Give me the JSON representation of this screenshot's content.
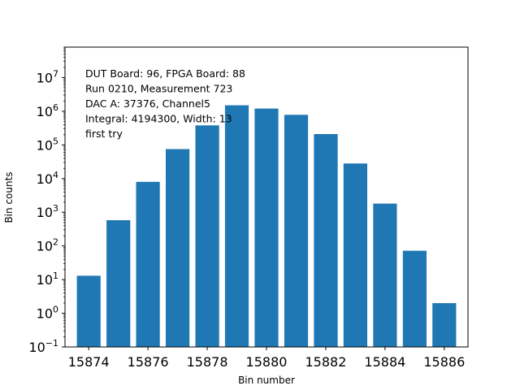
{
  "chart_data": {
    "type": "bar",
    "x": [
      15874,
      15875,
      15876,
      15877,
      15878,
      15879,
      15880,
      15881,
      15882,
      15883,
      15884,
      15885,
      15886
    ],
    "values": [
      13,
      580,
      8000,
      75000,
      380000,
      1500000,
      1200000,
      780000,
      210000,
      28000,
      1800,
      72,
      2
    ],
    "bar_color": "#1f77b4",
    "xlabel": "Bin number",
    "ylabel": "Bin counts",
    "yscale": "log",
    "xlim": [
      15873.2,
      15886.8
    ],
    "ylim": [
      0.1,
      80000000
    ],
    "x_ticks": [
      15874,
      15876,
      15878,
      15880,
      15882,
      15884,
      15886
    ],
    "y_ticks": [
      {
        "exp": -1,
        "base": "10",
        "sup": "−1"
      },
      {
        "exp": 0,
        "base": "10",
        "sup": "0"
      },
      {
        "exp": 1,
        "base": "10",
        "sup": "1"
      },
      {
        "exp": 2,
        "base": "10",
        "sup": "2"
      },
      {
        "exp": 3,
        "base": "10",
        "sup": "3"
      },
      {
        "exp": 4,
        "base": "10",
        "sup": "4"
      },
      {
        "exp": 5,
        "base": "10",
        "sup": "5"
      },
      {
        "exp": 6,
        "base": "10",
        "sup": "6"
      },
      {
        "exp": 7,
        "base": "10",
        "sup": "7"
      }
    ],
    "grid": false,
    "annotations": [
      "DUT Board: 96, FPGA Board: 88",
      "Run 0210, Measurement 723",
      "DAC A: 37376, Channel5",
      "Integral: 4194300, Width: 13",
      "first try"
    ]
  }
}
